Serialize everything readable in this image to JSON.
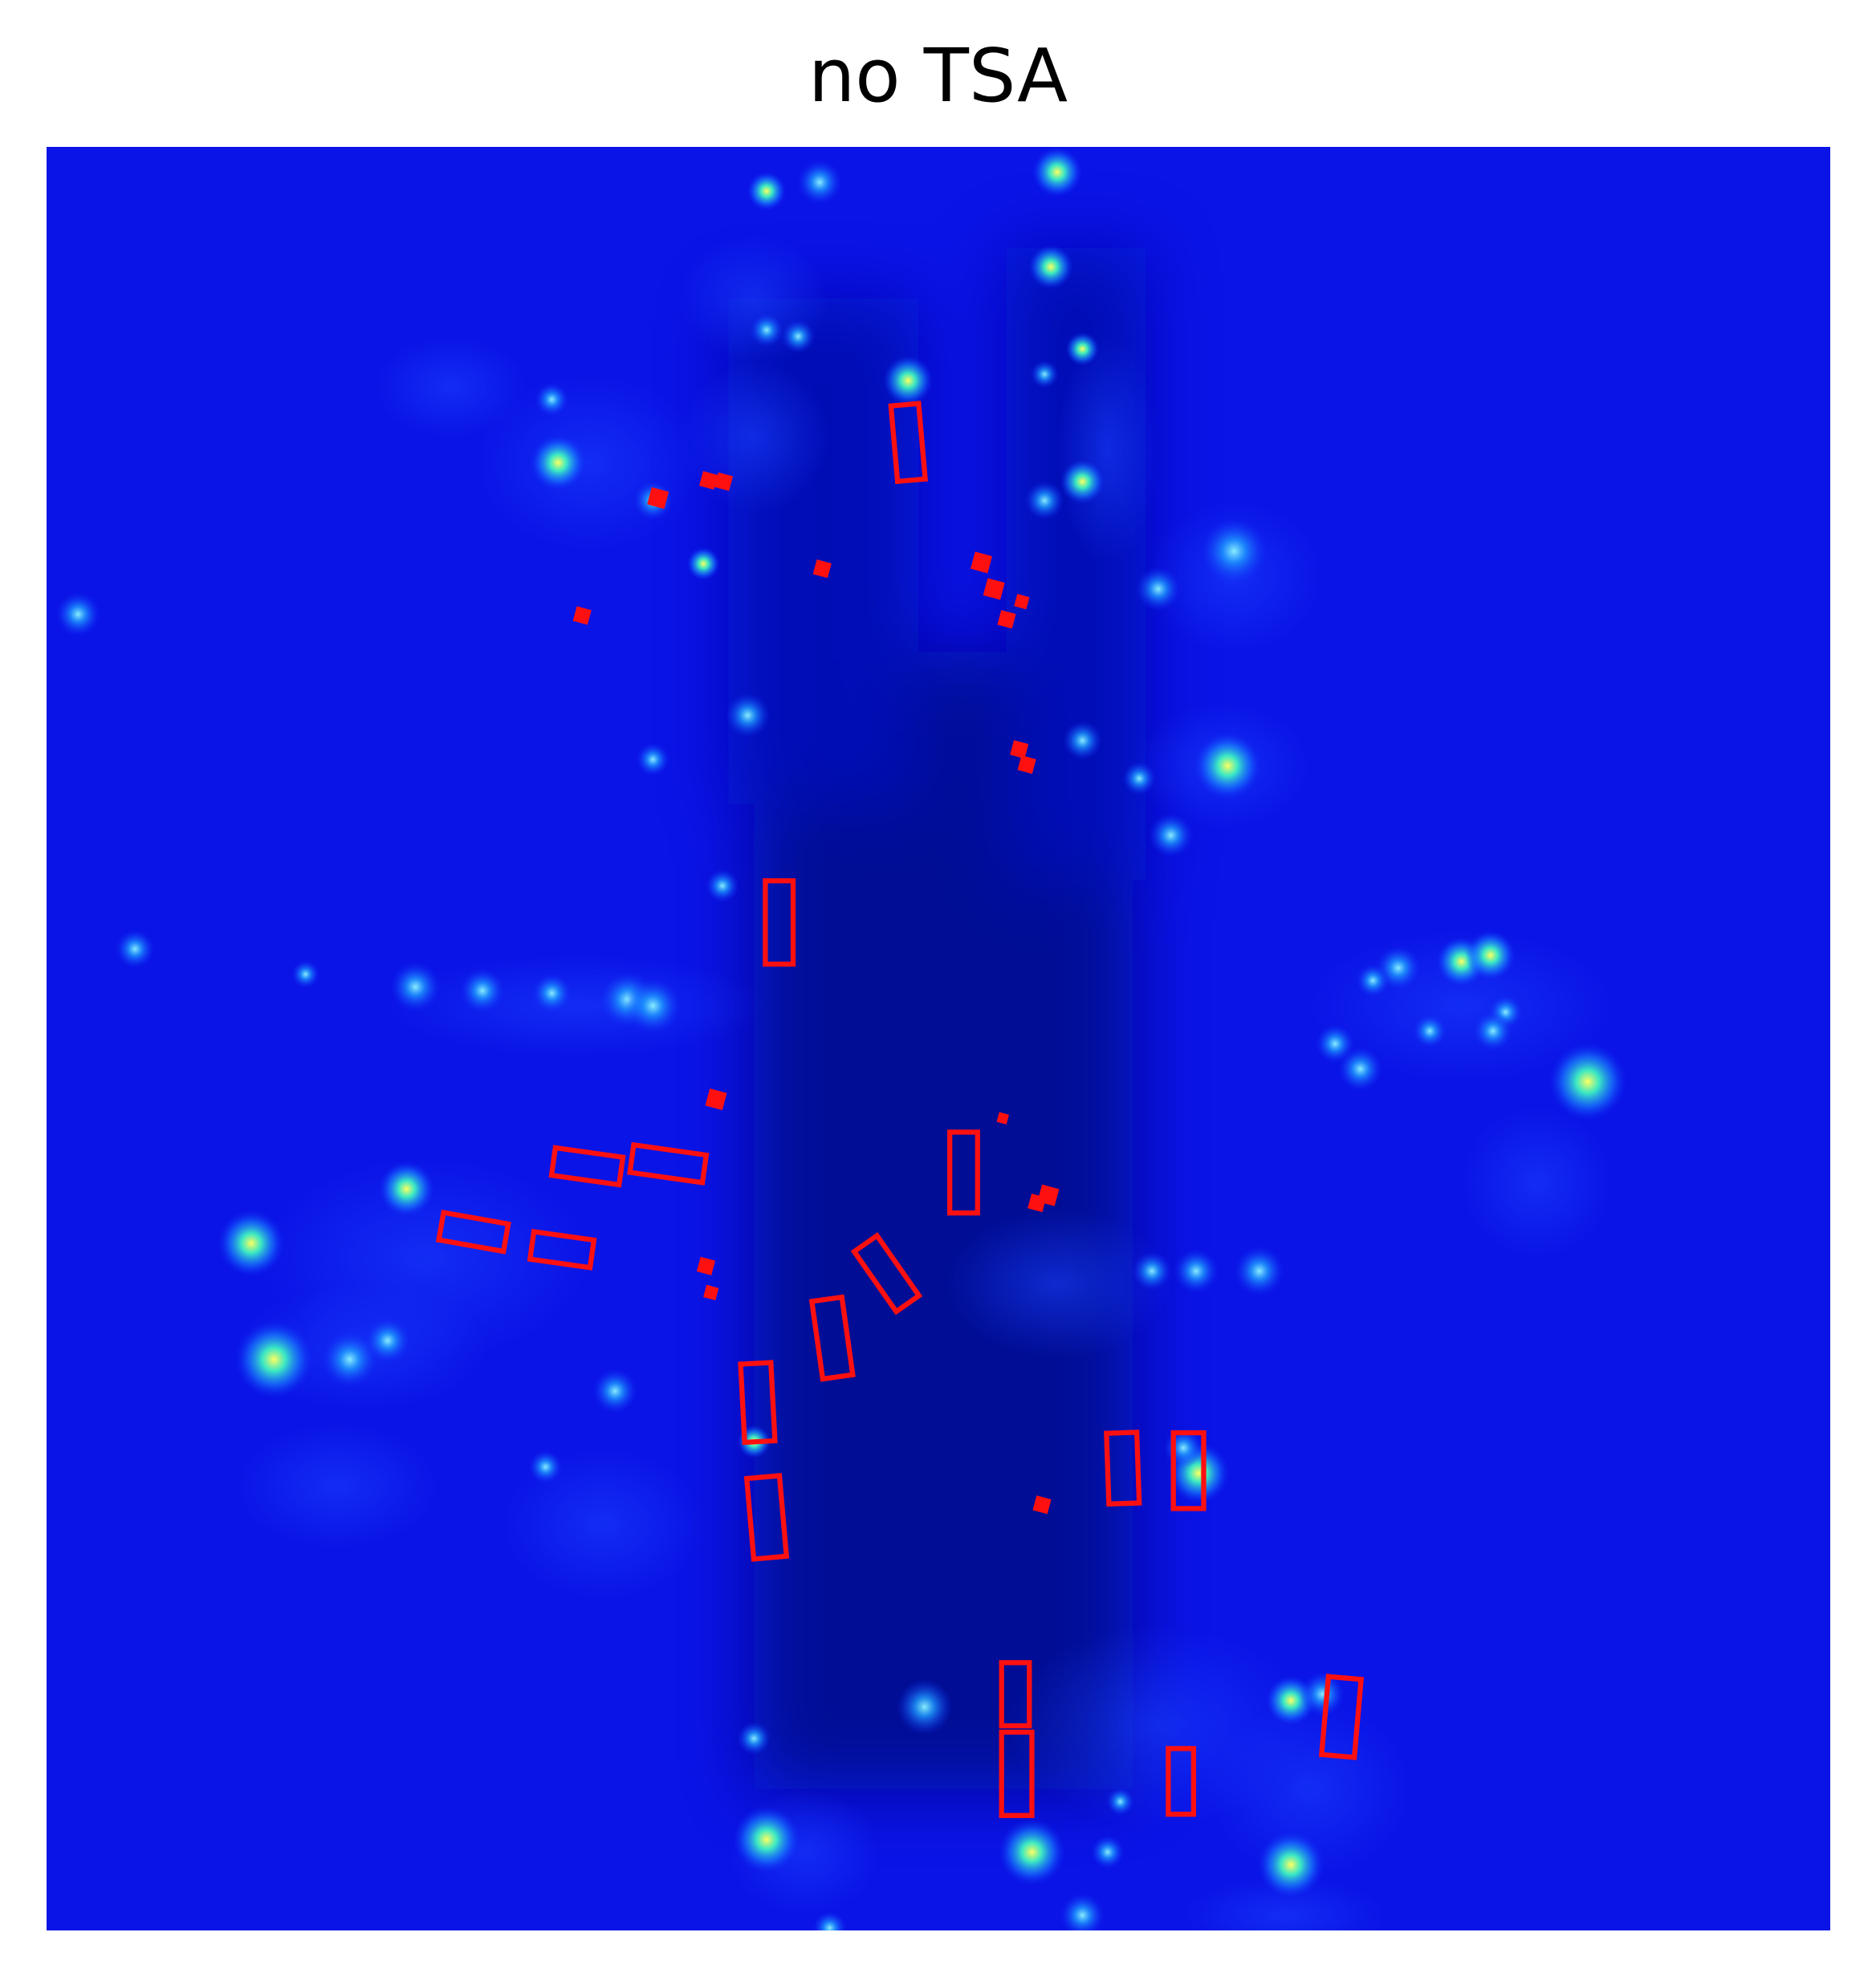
{
  "title": "no TSA",
  "palette": {
    "background": "#0a14e6",
    "road": "#000a8c",
    "hotspot_low": "#3aa0ff",
    "hotspot_high": "#ffff40",
    "box": "#ff1010"
  },
  "icons": [
    "heatmap-image",
    "detection-box",
    "detection-marker"
  ]
}
